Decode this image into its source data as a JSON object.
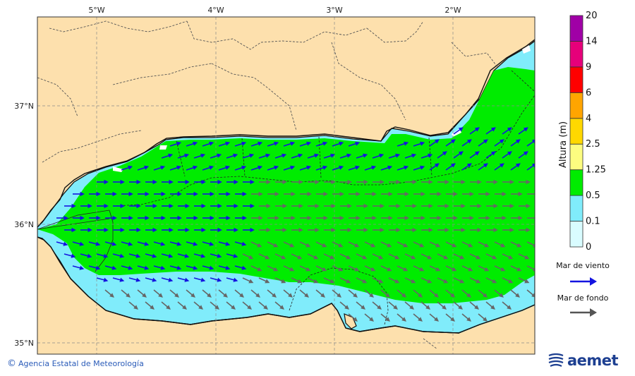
{
  "map": {
    "lon_ticks": [
      "5°W",
      "4°W",
      "3°W",
      "2°W"
    ],
    "lat_ticks": [
      "37°N",
      "36°N",
      "35°N"
    ],
    "extent": {
      "lon_min": -5.5,
      "lon_max": -1.3,
      "lat_min": 34.9,
      "lat_max": 37.75
    }
  },
  "colorbar": {
    "title": "Altura (m)",
    "levels": [
      "0",
      "0.1",
      "0.5",
      "1.25",
      "2.5",
      "4",
      "6",
      "9",
      "14",
      "20"
    ],
    "colors": [
      "#d9fcff",
      "#80ecfb",
      "#00ec00",
      "#fdfd80",
      "#ffd800",
      "#ffa500",
      "#ff0000",
      "#e6007a",
      "#a000a6"
    ]
  },
  "legend": {
    "wind_sea_label": "Mar de viento",
    "wind_sea_color": "#1414e0",
    "swell_label": "Mar de fondo",
    "swell_color": "#555555"
  },
  "colors": {
    "land": "#fde0ad",
    "coast": "#111111",
    "border": "#555555",
    "green": "#00ec00",
    "cyan": "#80ecfb"
  },
  "footer": {
    "credit": "Agencia Estatal de Meteorología",
    "logo_text": "aemet"
  }
}
